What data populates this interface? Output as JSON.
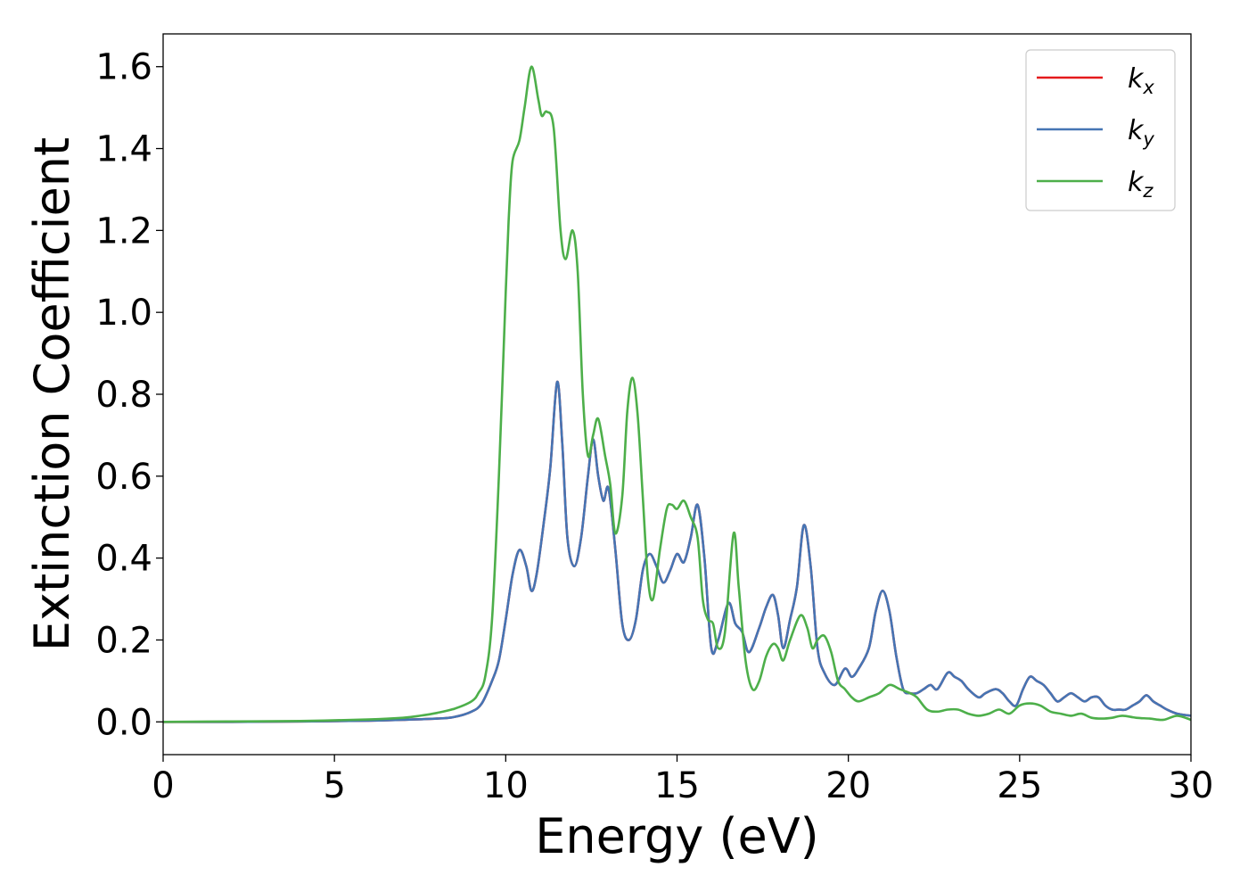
{
  "chart_data": {
    "type": "line",
    "title": "",
    "xlabel": "Energy (eV)",
    "ylabel": "Extinction Coefficient",
    "xlim": [
      0,
      30
    ],
    "ylim": [
      -0.08,
      1.68
    ],
    "xticks": [
      "0",
      "5",
      "10",
      "15",
      "20",
      "25",
      "30"
    ],
    "yticks": [
      "0.0",
      "0.2",
      "0.4",
      "0.6",
      "0.8",
      "1.0",
      "1.2",
      "1.4",
      "1.6"
    ],
    "grid": false,
    "legend_position": "top-right",
    "series": [
      {
        "name": "k_x",
        "legend_main": "k",
        "legend_sub": "x",
        "color": "#e41a1c",
        "x": [
          0,
          2,
          4,
          6,
          7,
          8,
          8.5,
          9,
          9.3,
          9.6,
          9.8,
          10,
          10.2,
          10.4,
          10.6,
          10.75,
          10.9,
          11.1,
          11.3,
          11.5,
          11.65,
          11.8,
          12,
          12.2,
          12.4,
          12.55,
          12.7,
          12.85,
          13,
          13.2,
          13.4,
          13.6,
          13.8,
          14,
          14.2,
          14.4,
          14.6,
          14.8,
          15,
          15.2,
          15.4,
          15.6,
          15.8,
          16,
          16.2,
          16.5,
          16.7,
          16.9,
          17.1,
          17.4,
          17.6,
          17.8,
          17.95,
          18.1,
          18.3,
          18.5,
          18.7,
          18.9,
          19.1,
          19.3,
          19.6,
          19.9,
          20.1,
          20.3,
          20.6,
          20.8,
          21,
          21.2,
          21.4,
          21.6,
          21.8,
          22,
          22.2,
          22.4,
          22.6,
          22.9,
          23.1,
          23.3,
          23.5,
          23.8,
          24,
          24.3,
          24.5,
          24.7,
          24.9,
          25.1,
          25.3,
          25.5,
          25.7,
          25.9,
          26.1,
          26.3,
          26.5,
          26.7,
          26.9,
          27.1,
          27.3,
          27.5,
          27.7,
          27.9,
          28.1,
          28.3,
          28.5,
          28.7,
          28.9,
          29.1,
          29.3,
          29.6,
          30
        ],
        "y": [
          0,
          0,
          0.001,
          0.003,
          0.005,
          0.008,
          0.012,
          0.025,
          0.045,
          0.1,
          0.15,
          0.25,
          0.36,
          0.42,
          0.38,
          0.32,
          0.36,
          0.48,
          0.62,
          0.83,
          0.68,
          0.45,
          0.38,
          0.45,
          0.6,
          0.69,
          0.6,
          0.54,
          0.57,
          0.42,
          0.24,
          0.2,
          0.25,
          0.37,
          0.41,
          0.38,
          0.34,
          0.37,
          0.41,
          0.39,
          0.45,
          0.53,
          0.4,
          0.18,
          0.2,
          0.29,
          0.24,
          0.22,
          0.17,
          0.23,
          0.28,
          0.31,
          0.26,
          0.18,
          0.25,
          0.33,
          0.48,
          0.38,
          0.18,
          0.12,
          0.09,
          0.13,
          0.11,
          0.13,
          0.18,
          0.27,
          0.32,
          0.27,
          0.16,
          0.08,
          0.07,
          0.07,
          0.08,
          0.09,
          0.08,
          0.12,
          0.11,
          0.1,
          0.08,
          0.06,
          0.07,
          0.08,
          0.07,
          0.05,
          0.04,
          0.08,
          0.11,
          0.1,
          0.09,
          0.07,
          0.05,
          0.06,
          0.07,
          0.06,
          0.05,
          0.06,
          0.06,
          0.04,
          0.03,
          0.03,
          0.03,
          0.04,
          0.05,
          0.065,
          0.05,
          0.04,
          0.03,
          0.02,
          0.015
        ]
      },
      {
        "name": "k_y",
        "legend_main": "k",
        "legend_sub": "y",
        "color": "#4575b4",
        "x": [
          0,
          2,
          4,
          6,
          7,
          8,
          8.5,
          9,
          9.3,
          9.6,
          9.8,
          10,
          10.2,
          10.4,
          10.6,
          10.75,
          10.9,
          11.1,
          11.3,
          11.5,
          11.65,
          11.8,
          12,
          12.2,
          12.4,
          12.55,
          12.7,
          12.85,
          13,
          13.2,
          13.4,
          13.6,
          13.8,
          14,
          14.2,
          14.4,
          14.6,
          14.8,
          15,
          15.2,
          15.4,
          15.6,
          15.8,
          16,
          16.2,
          16.5,
          16.7,
          16.9,
          17.1,
          17.4,
          17.6,
          17.8,
          17.95,
          18.1,
          18.3,
          18.5,
          18.7,
          18.9,
          19.1,
          19.3,
          19.6,
          19.9,
          20.1,
          20.3,
          20.6,
          20.8,
          21,
          21.2,
          21.4,
          21.6,
          21.8,
          22,
          22.2,
          22.4,
          22.6,
          22.9,
          23.1,
          23.3,
          23.5,
          23.8,
          24,
          24.3,
          24.5,
          24.7,
          24.9,
          25.1,
          25.3,
          25.5,
          25.7,
          25.9,
          26.1,
          26.3,
          26.5,
          26.7,
          26.9,
          27.1,
          27.3,
          27.5,
          27.7,
          27.9,
          28.1,
          28.3,
          28.5,
          28.7,
          28.9,
          29.1,
          29.3,
          29.6,
          30
        ],
        "y": [
          0,
          0,
          0.001,
          0.003,
          0.005,
          0.008,
          0.012,
          0.025,
          0.045,
          0.1,
          0.15,
          0.25,
          0.36,
          0.42,
          0.38,
          0.32,
          0.36,
          0.48,
          0.62,
          0.83,
          0.68,
          0.45,
          0.38,
          0.45,
          0.6,
          0.69,
          0.6,
          0.54,
          0.57,
          0.42,
          0.24,
          0.2,
          0.25,
          0.37,
          0.41,
          0.38,
          0.34,
          0.37,
          0.41,
          0.39,
          0.45,
          0.53,
          0.4,
          0.18,
          0.2,
          0.29,
          0.24,
          0.22,
          0.17,
          0.23,
          0.28,
          0.31,
          0.26,
          0.18,
          0.25,
          0.33,
          0.48,
          0.38,
          0.18,
          0.12,
          0.09,
          0.13,
          0.11,
          0.13,
          0.18,
          0.27,
          0.32,
          0.27,
          0.16,
          0.08,
          0.07,
          0.07,
          0.08,
          0.09,
          0.08,
          0.12,
          0.11,
          0.1,
          0.08,
          0.06,
          0.07,
          0.08,
          0.07,
          0.05,
          0.04,
          0.08,
          0.11,
          0.1,
          0.09,
          0.07,
          0.05,
          0.06,
          0.07,
          0.06,
          0.05,
          0.06,
          0.06,
          0.04,
          0.03,
          0.03,
          0.03,
          0.04,
          0.05,
          0.065,
          0.05,
          0.04,
          0.03,
          0.02,
          0.015
        ]
      },
      {
        "name": "k_z",
        "legend_main": "k",
        "legend_sub": "z",
        "color": "#4daf4a",
        "x": [
          0,
          2,
          4,
          6,
          7,
          7.5,
          8,
          8.5,
          9,
          9.2,
          9.4,
          9.6,
          9.8,
          10,
          10.1,
          10.2,
          10.4,
          10.55,
          10.75,
          10.95,
          11.05,
          11.2,
          11.4,
          11.6,
          11.75,
          11.95,
          12.1,
          12.25,
          12.4,
          12.55,
          12.7,
          12.9,
          13.05,
          13.2,
          13.4,
          13.55,
          13.7,
          13.85,
          14,
          14.15,
          14.3,
          14.5,
          14.7,
          14.85,
          15,
          15.2,
          15.4,
          15.6,
          15.75,
          15.9,
          16.05,
          16.2,
          16.4,
          16.65,
          16.8,
          17,
          17.2,
          17.4,
          17.6,
          17.8,
          17.95,
          18.1,
          18.3,
          18.6,
          18.8,
          18.95,
          19.1,
          19.3,
          19.5,
          19.7,
          19.9,
          20.1,
          20.3,
          20.6,
          20.9,
          21.2,
          21.5,
          21.8,
          22,
          22.3,
          22.6,
          22.9,
          23.2,
          23.5,
          23.8,
          24.1,
          24.4,
          24.7,
          25,
          25.3,
          25.6,
          25.9,
          26.2,
          26.5,
          26.8,
          27.1,
          27.4,
          27.7,
          28,
          28.4,
          28.8,
          29.2,
          29.6,
          30
        ],
        "y": [
          0,
          0.001,
          0.002,
          0.006,
          0.01,
          0.015,
          0.022,
          0.032,
          0.05,
          0.07,
          0.11,
          0.25,
          0.6,
          1.05,
          1.25,
          1.37,
          1.42,
          1.5,
          1.6,
          1.52,
          1.48,
          1.49,
          1.45,
          1.2,
          1.13,
          1.2,
          1.1,
          0.8,
          0.65,
          0.7,
          0.74,
          0.65,
          0.58,
          0.46,
          0.55,
          0.76,
          0.84,
          0.75,
          0.55,
          0.35,
          0.3,
          0.42,
          0.52,
          0.53,
          0.52,
          0.54,
          0.5,
          0.45,
          0.3,
          0.25,
          0.24,
          0.18,
          0.22,
          0.46,
          0.33,
          0.15,
          0.08,
          0.1,
          0.16,
          0.19,
          0.18,
          0.15,
          0.2,
          0.26,
          0.23,
          0.18,
          0.2,
          0.21,
          0.17,
          0.1,
          0.08,
          0.06,
          0.05,
          0.06,
          0.07,
          0.09,
          0.08,
          0.07,
          0.06,
          0.03,
          0.025,
          0.03,
          0.03,
          0.02,
          0.015,
          0.02,
          0.03,
          0.02,
          0.04,
          0.045,
          0.04,
          0.025,
          0.02,
          0.015,
          0.02,
          0.01,
          0.008,
          0.01,
          0.015,
          0.01,
          0.008,
          0.005,
          0.015,
          0.005
        ]
      }
    ]
  }
}
